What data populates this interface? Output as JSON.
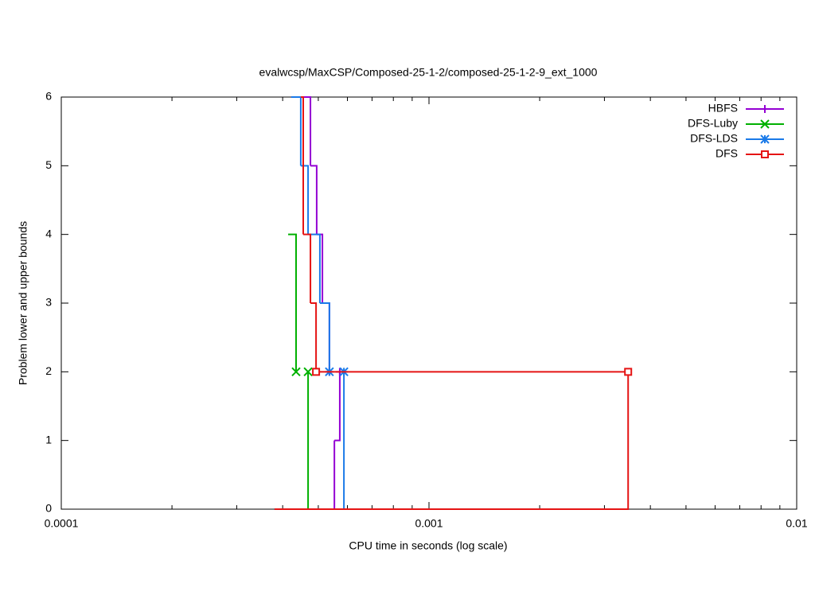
{
  "chart_data": {
    "type": "step",
    "title": "evalwcsp/MaxCSP/Composed-25-1-2/composed-25-1-2-9_ext_1000",
    "x_label": "CPU time in seconds (log scale)",
    "y_label": "Problem lower and upper bounds",
    "log_x": true,
    "xlim": [
      0.0001,
      0.01
    ],
    "xticks": [
      0.0001,
      0.001,
      0.01
    ],
    "ylim": [
      0,
      6
    ],
    "yticks": [
      0,
      1,
      2,
      3,
      4,
      5,
      6
    ],
    "legend": "top-right",
    "series": [
      {
        "name": "HBFS",
        "color": "#9400d3",
        "marker": "plus",
        "x": [
          0.000422,
          0.000476,
          0.000495,
          0.000513,
          0.000536,
          null,
          0.00038,
          0.000553,
          0.000572
        ],
        "values": [
          6,
          5,
          4,
          3,
          2,
          null,
          0,
          1,
          2
        ]
      },
      {
        "name": "DFS-Luby",
        "color": "#00b000",
        "marker": "cross",
        "x": [
          0.000414,
          0.000435,
          null,
          0.00038,
          0.000469
        ],
        "values": [
          4,
          2,
          null,
          0,
          2
        ]
      },
      {
        "name": "DFS-LDS",
        "color": "#1a7ae8",
        "marker": "star",
        "x": [
          0.000422,
          0.000448,
          0.000469,
          0.000505,
          0.000536,
          null,
          0.00038,
          0.000587
        ],
        "values": [
          6,
          5,
          4,
          3,
          2,
          null,
          0,
          2
        ]
      },
      {
        "name": "DFS",
        "color": "#e51414",
        "marker": "square",
        "x": [
          0.000448,
          0.000455,
          0.000476,
          0.000493,
          0.00348,
          null,
          0.00038,
          0.00348
        ],
        "values": [
          6,
          4,
          3,
          2,
          2,
          null,
          0,
          2
        ]
      }
    ]
  }
}
